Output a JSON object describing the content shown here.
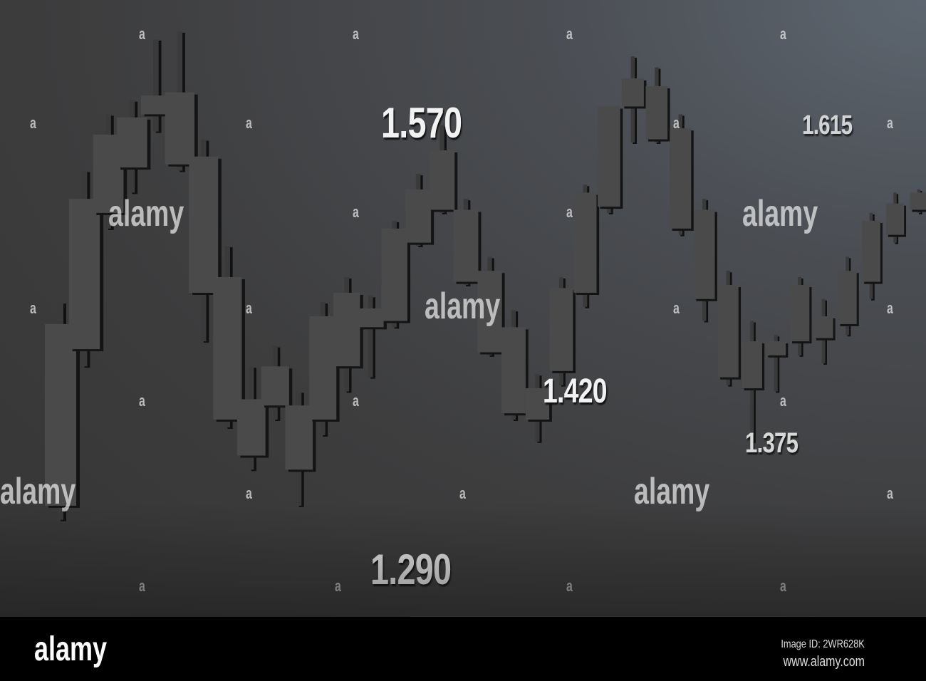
{
  "chart_data": {
    "type": "candlestick",
    "title": "",
    "xlabel": "",
    "ylabel": "",
    "ylim": [
      1.27,
      1.66
    ],
    "grid": false,
    "candle_color": "#4a4a4a",
    "price_labels": [
      "1.570",
      "1.290",
      "1.420",
      "1.375",
      "1.615"
    ],
    "candles": [
      {
        "o": 1.332,
        "h": 1.462,
        "l": 1.323,
        "c": 1.448
      },
      {
        "o": 1.432,
        "h": 1.546,
        "l": 1.421,
        "c": 1.528
      },
      {
        "o": 1.519,
        "h": 1.582,
        "l": 1.509,
        "c": 1.569
      },
      {
        "o": 1.548,
        "h": 1.591,
        "l": 1.532,
        "c": 1.58
      },
      {
        "o": 1.582,
        "h": 1.63,
        "l": 1.571,
        "c": 1.594
      },
      {
        "o": 1.596,
        "h": 1.635,
        "l": 1.546,
        "c": 1.55
      },
      {
        "o": 1.555,
        "h": 1.566,
        "l": 1.437,
        "c": 1.468
      },
      {
        "o": 1.478,
        "h": 1.498,
        "l": 1.382,
        "c": 1.387
      },
      {
        "o": 1.4,
        "h": 1.421,
        "l": 1.355,
        "c": 1.364
      },
      {
        "o": 1.396,
        "h": 1.434,
        "l": 1.387,
        "c": 1.421
      },
      {
        "o": 1.396,
        "h": 1.405,
        "l": 1.332,
        "c": 1.355
      },
      {
        "o": 1.387,
        "h": 1.462,
        "l": 1.377,
        "c": 1.453
      },
      {
        "o": 1.421,
        "h": 1.478,
        "l": 1.405,
        "c": 1.468
      },
      {
        "o": 1.458,
        "h": 1.466,
        "l": 1.414,
        "c": 1.446
      },
      {
        "o": 1.45,
        "h": 1.514,
        "l": 1.446,
        "c": 1.509
      },
      {
        "o": 1.5,
        "h": 1.544,
        "l": 1.498,
        "c": 1.534
      },
      {
        "o": 1.521,
        "h": 1.575,
        "l": 1.519,
        "c": 1.559
      },
      {
        "o": 1.521,
        "h": 1.528,
        "l": 1.473,
        "c": 1.475
      },
      {
        "o": 1.482,
        "h": 1.491,
        "l": 1.428,
        "c": 1.43
      },
      {
        "o": 1.446,
        "h": 1.457,
        "l": 1.387,
        "c": 1.391
      },
      {
        "o": 1.387,
        "h": 1.416,
        "l": 1.373,
        "c": 1.407
      },
      {
        "o": 1.418,
        "h": 1.478,
        "l": 1.409,
        "c": 1.471
      },
      {
        "o": 1.468,
        "h": 1.537,
        "l": 1.459,
        "c": 1.532
      },
      {
        "o": 1.523,
        "h": 1.587,
        "l": 1.519,
        "c": 1.587
      },
      {
        "o": 1.587,
        "h": 1.619,
        "l": 1.564,
        "c": 1.605
      },
      {
        "o": 1.6,
        "h": 1.612,
        "l": 1.564,
        "c": 1.566
      },
      {
        "o": 1.573,
        "h": 1.582,
        "l": 1.505,
        "c": 1.509
      },
      {
        "o": 1.521,
        "h": 1.528,
        "l": 1.45,
        "c": 1.464
      },
      {
        "o": 1.473,
        "h": 1.482,
        "l": 1.409,
        "c": 1.414
      },
      {
        "o": 1.437,
        "h": 1.45,
        "l": 1.373,
        "c": 1.407
      },
      {
        "o": 1.428,
        "h": 1.441,
        "l": 1.405,
        "c": 1.437
      },
      {
        "o": 1.437,
        "h": 1.478,
        "l": 1.428,
        "c": 1.473
      },
      {
        "o": 1.453,
        "h": 1.464,
        "l": 1.423,
        "c": 1.439
      },
      {
        "o": 1.448,
        "h": 1.491,
        "l": 1.441,
        "c": 1.482
      },
      {
        "o": 1.475,
        "h": 1.519,
        "l": 1.464,
        "c": 1.514
      },
      {
        "o": 1.505,
        "h": 1.532,
        "l": 1.5,
        "c": 1.525
      },
      {
        "o": 1.521,
        "h": 1.534,
        "l": 1.519,
        "c": 1.532
      }
    ]
  },
  "watermark": {
    "word": "alamy",
    "glyph": "a"
  },
  "footer": {
    "logo": "alamy",
    "image_id": "Image ID: 2WR628K",
    "url": "www.alamy.com"
  }
}
